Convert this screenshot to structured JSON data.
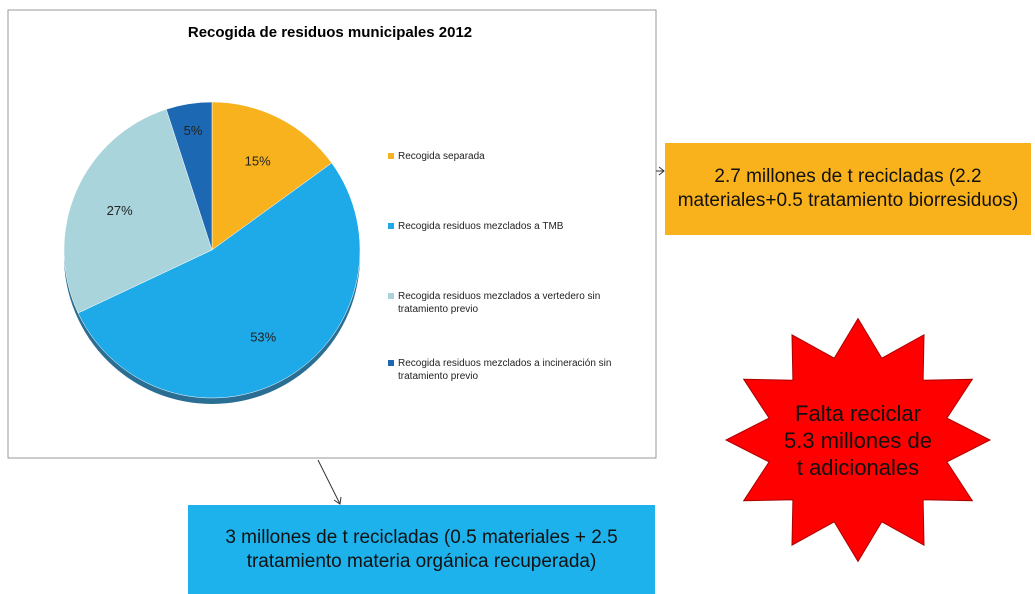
{
  "chart_data": {
    "type": "pie",
    "title": "Recogida de residuos municipales 2012",
    "categories": [
      "Recogida separada",
      "Recogida residuos mezclados a TMB",
      "Recogida residuos mezclados a vertedero sin tratamiento previo",
      "Recogida residuos mezclados a incineración sin tratamiento previo"
    ],
    "values": [
      15,
      53,
      27,
      5
    ],
    "value_labels": [
      "15%",
      "53%",
      "27%",
      "5%"
    ],
    "colors": [
      "#f7b21e",
      "#1ea9e8",
      "#a9d4dc",
      "#1d68b3"
    ],
    "legend": "right",
    "annotations": [
      {
        "text": "2.7 millones de t recicladas (2.2 materiales+0.5 tratamiento biorresiduos)",
        "color": "#f9b21c"
      },
      {
        "text": "3 millones de t recicladas (0.5 materiales + 2.5 tratamiento materia orgánica recuperada)",
        "color": "#1eb2ec"
      },
      {
        "text": "Falta reciclar 5.3 millones de t adicionales",
        "color": "#ff0000"
      }
    ]
  }
}
